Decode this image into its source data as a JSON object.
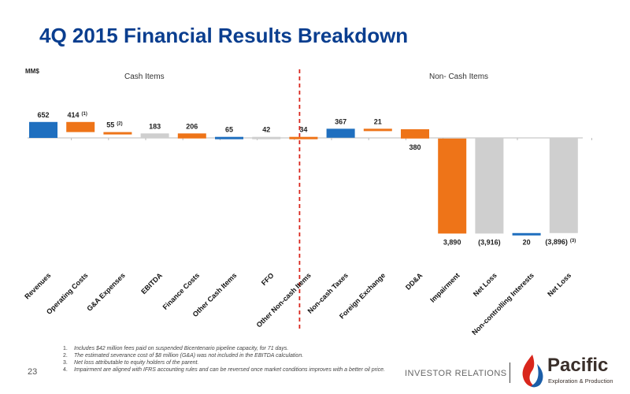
{
  "page": {
    "title": "4Q 2015 Financial Results Breakdown",
    "unit_label": "MM$",
    "page_number": "23",
    "section_footer": "INVESTOR RELATIONS"
  },
  "logo": {
    "name": "Pacific",
    "tagline": "Exploration & Production"
  },
  "footnotes": [
    "Includes $42 million fees paid on suspended Bicentenario pipeline capacity, for 71 days.",
    "The estimated severance cost of $8 million (G&A) was not included in the EBITDA calculation.",
    "Net loss attributable to equity holders of the parent.",
    "Impairment are aligned with IFRS accounting rules and can be reversed once market conditions improves with a better oil price."
  ],
  "colors": {
    "title": "#0a3e8f",
    "blue": "#1f6fbf",
    "orange": "#ee7418",
    "gray": "#cfcfcf",
    "divider": "#d9261c"
  },
  "chart_data": {
    "type": "bar",
    "subtype": "waterfall",
    "unit": "MM$",
    "sections": [
      {
        "name": "Cash Items",
        "categories": [
          "Revenues",
          "Operating Costs",
          "G&A Expenses",
          "EBITDA",
          "Finance Costs",
          "Other Cash Items",
          "FFO"
        ]
      },
      {
        "name": "Non- Cash Items",
        "categories": [
          "Other Non-cash Items",
          "Non-cash Taxes",
          "Foreign Exchange",
          "DD&A",
          "Impairment",
          "Net Loss",
          "Non-controlling Interests",
          "Net Loss"
        ]
      }
    ],
    "bars": [
      {
        "category": "Revenues",
        "value": 652,
        "start": 0,
        "end": 652,
        "label": "652",
        "sup": "",
        "color": "blue"
      },
      {
        "category": "Operating Costs",
        "value": -414,
        "start": 652,
        "end": 238,
        "label": "414",
        "sup": "(1)",
        "color": "orange"
      },
      {
        "category": "G&A Expenses",
        "value": -55,
        "start": 238,
        "end": 183,
        "label": "55",
        "sup": "(2)",
        "color": "orange"
      },
      {
        "category": "EBITDA",
        "value": 183,
        "start": 0,
        "end": 183,
        "label": "183",
        "sup": "",
        "color": "gray"
      },
      {
        "category": "Finance Costs",
        "value": -206,
        "start": 183,
        "end": -23,
        "label": "206",
        "sup": "",
        "color": "orange"
      },
      {
        "category": "Other Cash Items",
        "value": 65,
        "start": -23,
        "end": 42,
        "label": "65",
        "sup": "",
        "color": "blue"
      },
      {
        "category": "FFO",
        "value": 42,
        "start": 0,
        "end": 42,
        "label": "42",
        "sup": "",
        "color": "gray"
      },
      {
        "category": "Other Non-cash Items",
        "value": -34,
        "start": 42,
        "end": 8,
        "label": "34",
        "sup": "",
        "color": "orange"
      },
      {
        "category": "Non-cash Taxes",
        "value": 367,
        "start": 8,
        "end": 375,
        "label": "367",
        "sup": "",
        "color": "blue"
      },
      {
        "category": "Foreign Exchange",
        "value": -21,
        "start": 375,
        "end": 354,
        "label": "21",
        "sup": "",
        "color": "orange"
      },
      {
        "category": "DD&A",
        "value": -380,
        "start": 354,
        "end": -26,
        "label": "380",
        "sup": "",
        "color": "orange"
      },
      {
        "category": "Impairment",
        "value": -3890,
        "start": -26,
        "end": -3916,
        "label": "3,890",
        "sup": "",
        "color": "orange"
      },
      {
        "category": "Net Loss",
        "value": -3916,
        "start": 0,
        "end": -3916,
        "label": "(3,916)",
        "sup": "",
        "color": "gray"
      },
      {
        "category": "Non-controlling Interests",
        "value": 20,
        "start": -3916,
        "end": -3896,
        "label": "20",
        "sup": "",
        "color": "blue"
      },
      {
        "category": "Net Loss",
        "value": -3896,
        "start": 0,
        "end": -3896,
        "label": "(3,896)",
        "sup": "(3)",
        "color": "gray"
      }
    ]
  }
}
